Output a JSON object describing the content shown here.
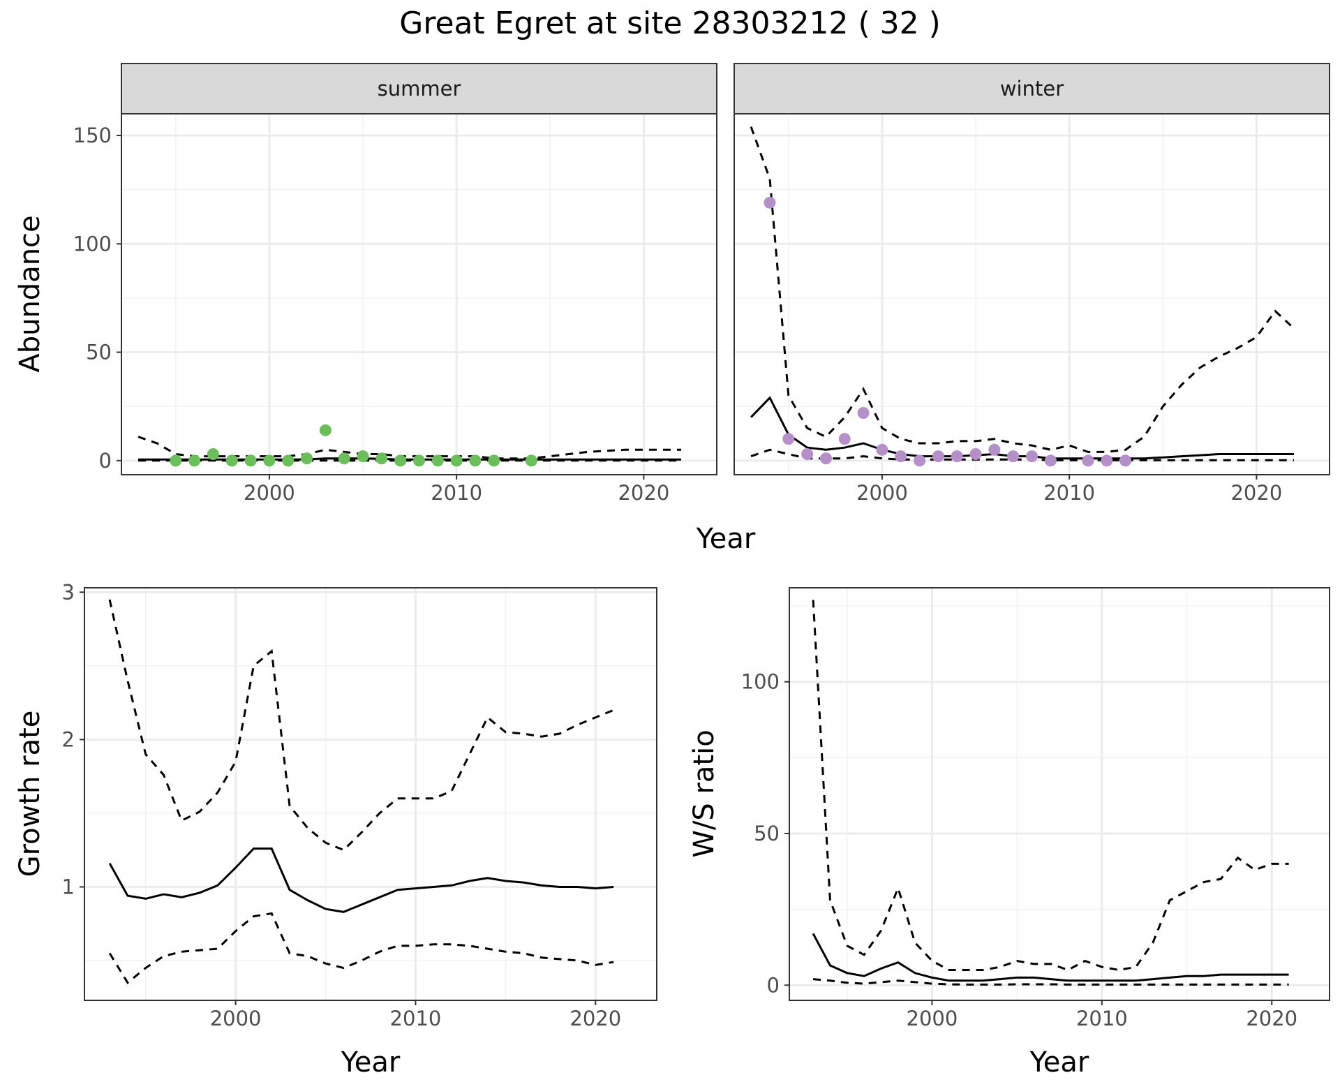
{
  "title": "Great Egret at site 28303212 ( 32 )",
  "colors": {
    "summer_points": "#6abf5a",
    "winter_points": "#b48fc8",
    "strip_fill": "#d9d9d9",
    "grid": "#ebebeb"
  },
  "chart_data": [
    {
      "id": "abundance",
      "type": "line",
      "ylabel": "Abundance",
      "xlabel": "Year",
      "x_ticks": [
        2000,
        2010,
        2020
      ],
      "y_ticks": [
        0,
        50,
        100,
        150
      ],
      "xlim": [
        1992.1,
        2023.9
      ],
      "ylim": [
        -6.5,
        160
      ],
      "panels": [
        {
          "strip": "summer",
          "x": [
            1993,
            1994,
            1995,
            1996,
            1997,
            1998,
            1999,
            2000,
            2001,
            2002,
            2003,
            2004,
            2005,
            2006,
            2007,
            2008,
            2009,
            2010,
            2011,
            2012,
            2013,
            2014,
            2015,
            2016,
            2017,
            2018,
            2019,
            2020,
            2021,
            2022
          ],
          "mean": [
            0.5,
            0.5,
            0.5,
            0.5,
            0.5,
            0.5,
            0.5,
            0.5,
            0.5,
            0.6,
            1,
            1,
            1,
            0.8,
            0.5,
            0.5,
            0.5,
            0.5,
            0.5,
            0.5,
            0.5,
            0.5,
            0.5,
            0.5,
            0.5,
            0.5,
            0.5,
            0.5,
            0.5,
            0.5
          ],
          "upper": [
            11,
            8,
            3,
            2,
            2,
            2,
            2,
            2,
            2,
            3,
            5,
            4,
            3,
            3,
            2,
            2,
            2,
            2,
            2,
            1,
            1,
            1,
            2,
            3,
            4,
            4.5,
            5,
            5,
            5,
            5
          ],
          "lower": [
            0,
            0,
            0,
            0,
            0,
            0,
            0,
            0,
            0,
            0,
            0,
            0,
            0,
            0,
            0,
            0,
            0,
            0,
            0,
            0,
            0,
            0,
            0,
            0,
            0,
            0,
            0,
            0,
            0,
            0
          ],
          "observed": [
            [
              1995,
              0
            ],
            [
              1996,
              0
            ],
            [
              1997,
              3
            ],
            [
              1998,
              0
            ],
            [
              1999,
              0
            ],
            [
              2000,
              0
            ],
            [
              2001,
              0
            ],
            [
              2002,
              1
            ],
            [
              2003,
              14
            ],
            [
              2004,
              1
            ],
            [
              2005,
              2
            ],
            [
              2006,
              1
            ],
            [
              2007,
              0
            ],
            [
              2008,
              0
            ],
            [
              2009,
              0
            ],
            [
              2010,
              0
            ],
            [
              2011,
              0
            ],
            [
              2012,
              0
            ],
            [
              2014,
              0
            ]
          ]
        },
        {
          "strip": "winter",
          "x": [
            1993,
            1994,
            1995,
            1996,
            1997,
            1998,
            1999,
            2000,
            2001,
            2002,
            2003,
            2004,
            2005,
            2006,
            2007,
            2008,
            2009,
            2010,
            2011,
            2012,
            2013,
            2014,
            2015,
            2016,
            2017,
            2018,
            2019,
            2020,
            2021,
            2022
          ],
          "mean": [
            20,
            29,
            12,
            6,
            5,
            6,
            8,
            5,
            3,
            2,
            2,
            2,
            2.5,
            3,
            2,
            2,
            1,
            1,
            1,
            1,
            1,
            1,
            1.5,
            2,
            2.5,
            3,
            3,
            3,
            3,
            3
          ],
          "upper": [
            154,
            130,
            30,
            15,
            11,
            20,
            33,
            15,
            10,
            8,
            8,
            9,
            9,
            10,
            8,
            7,
            5,
            7,
            4,
            4,
            5,
            11,
            25,
            35,
            43,
            48,
            52,
            57,
            69,
            61
          ],
          "lower": [
            2,
            5,
            3,
            1,
            1,
            1,
            2,
            1,
            0.5,
            0.5,
            0.5,
            0.5,
            0.5,
            0.5,
            0.5,
            0.5,
            0.2,
            0.2,
            0.2,
            0.2,
            0.2,
            0.2,
            0.2,
            0.2,
            0.2,
            0.2,
            0.2,
            0.2,
            0.2,
            0.2
          ],
          "observed": [
            [
              1994,
              119
            ],
            [
              1995,
              10
            ],
            [
              1996,
              3
            ],
            [
              1997,
              1
            ],
            [
              1998,
              10
            ],
            [
              1999,
              22
            ],
            [
              2000,
              5
            ],
            [
              2001,
              2
            ],
            [
              2002,
              0
            ],
            [
              2003,
              2
            ],
            [
              2004,
              2
            ],
            [
              2005,
              3
            ],
            [
              2006,
              5
            ],
            [
              2007,
              2
            ],
            [
              2008,
              2
            ],
            [
              2009,
              0
            ],
            [
              2011,
              0
            ],
            [
              2012,
              0
            ],
            [
              2013,
              0
            ]
          ]
        }
      ]
    },
    {
      "id": "growth",
      "type": "line",
      "ylabel": "Growth rate",
      "xlabel": "Year",
      "x_ticks": [
        2000,
        2010,
        2020
      ],
      "y_ticks": [
        1,
        2,
        3
      ],
      "xlim": [
        1991.6,
        2023.4
      ],
      "ylim": [
        0.23,
        3.03
      ],
      "x": [
        1993,
        1994,
        1995,
        1996,
        1997,
        1998,
        1999,
        2000,
        2001,
        2002,
        2003,
        2004,
        2005,
        2006,
        2007,
        2008,
        2009,
        2010,
        2011,
        2012,
        2013,
        2014,
        2015,
        2016,
        2017,
        2018,
        2019,
        2020,
        2021
      ],
      "mean": [
        1.16,
        0.94,
        0.92,
        0.95,
        0.93,
        0.96,
        1.01,
        1.13,
        1.26,
        1.26,
        0.98,
        0.91,
        0.85,
        0.83,
        0.88,
        0.93,
        0.98,
        0.99,
        1.0,
        1.01,
        1.04,
        1.06,
        1.04,
        1.03,
        1.01,
        1.0,
        1.0,
        0.99,
        1.0
      ],
      "upper": [
        2.95,
        2.4,
        1.9,
        1.76,
        1.45,
        1.51,
        1.64,
        1.85,
        2.5,
        2.6,
        1.55,
        1.4,
        1.3,
        1.25,
        1.37,
        1.5,
        1.6,
        1.6,
        1.6,
        1.65,
        1.9,
        2.15,
        2.05,
        2.04,
        2.02,
        2.04,
        2.1,
        2.15,
        2.2
      ],
      "lower": [
        0.55,
        0.35,
        0.45,
        0.53,
        0.56,
        0.57,
        0.58,
        0.7,
        0.8,
        0.82,
        0.55,
        0.53,
        0.48,
        0.45,
        0.5,
        0.56,
        0.6,
        0.6,
        0.61,
        0.61,
        0.6,
        0.58,
        0.56,
        0.55,
        0.52,
        0.51,
        0.5,
        0.47,
        0.49
      ]
    },
    {
      "id": "ratio",
      "type": "line",
      "ylabel": "W/S ratio",
      "xlabel": "Year",
      "x_ticks": [
        2000,
        2010,
        2020
      ],
      "y_ticks": [
        0,
        50,
        100
      ],
      "xlim": [
        1991.6,
        2023.4
      ],
      "ylim": [
        -5,
        131
      ],
      "x": [
        1993,
        1994,
        1995,
        1996,
        1997,
        1998,
        1999,
        2000,
        2001,
        2002,
        2003,
        2004,
        2005,
        2006,
        2007,
        2008,
        2009,
        2010,
        2011,
        2012,
        2013,
        2014,
        2015,
        2016,
        2017,
        2018,
        2019,
        2020,
        2021
      ],
      "mean": [
        17,
        6.5,
        4,
        3,
        5.5,
        7.5,
        4,
        2.5,
        1.5,
        1.5,
        1.5,
        2,
        2.5,
        2.5,
        2,
        1.5,
        1.5,
        1.5,
        1.5,
        1.5,
        2,
        2.5,
        3,
        3,
        3.5,
        3.5,
        3.5,
        3.5,
        3.5
      ],
      "upper": [
        127,
        28,
        13,
        10,
        18,
        32,
        14,
        8,
        5,
        5,
        5,
        6,
        8,
        7,
        7,
        5,
        8,
        6,
        5,
        6,
        14,
        28,
        31,
        34,
        35,
        42,
        38,
        40,
        40
      ],
      "lower": [
        2,
        1.5,
        0.8,
        0.5,
        1,
        1.5,
        1,
        0.5,
        0.3,
        0.2,
        0.2,
        0.2,
        0.3,
        0.3,
        0.3,
        0.2,
        0.2,
        0.2,
        0.2,
        0.2,
        0.2,
        0.2,
        0.2,
        0.2,
        0.2,
        0.2,
        0.2,
        0.2,
        0.2
      ]
    }
  ]
}
